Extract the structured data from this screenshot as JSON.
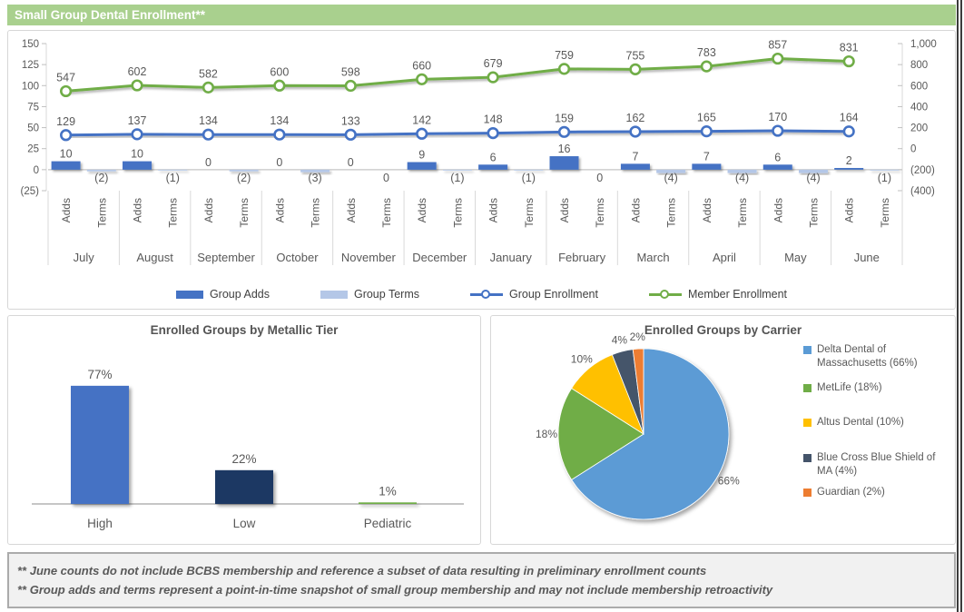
{
  "page": {
    "title": "Small Group Dental Enrollment**"
  },
  "footnotes": [
    "** June counts do not include BCBS membership and reference a subset of data resulting in preliminary enrollment counts",
    "** Group adds and terms represent a point-in-time snapshot of small group membership and may not include membership retroactivity"
  ],
  "colors": {
    "title_bar": "#A9D08E",
    "axis_text": "#595959",
    "grid_line": "#D9D9D9",
    "zero_line": "#C6C6C6"
  },
  "chart_data": [
    {
      "id": "small-group-dental-enrollment-combo",
      "type": "combo-bar-line",
      "categories": [
        "July",
        "August",
        "September",
        "October",
        "November",
        "December",
        "January",
        "February",
        "March",
        "April",
        "May",
        "June"
      ],
      "sub_categories": [
        "Adds",
        "Terms"
      ],
      "left_axis": {
        "min": -25,
        "max": 150,
        "tick_labels": [
          "150",
          "125",
          "100",
          "75",
          "50",
          "25",
          "0",
          "(25)"
        ]
      },
      "right_axis": {
        "min": -400,
        "max": 1000,
        "tick_labels": [
          "1,000",
          "800",
          "600",
          "400",
          "200",
          "0",
          "(200)",
          "(400)"
        ]
      },
      "legend_position": "bottom",
      "series": [
        {
          "name": "Group Adds",
          "kind": "bar",
          "axis": "left",
          "color": "#4472C4",
          "values": [
            10,
            10,
            0,
            0,
            0,
            9,
            6,
            16,
            7,
            7,
            6,
            2
          ],
          "labels": [
            "10",
            "10",
            "0",
            "0",
            "0",
            "9",
            "6",
            "16",
            "7",
            "7",
            "6",
            "2"
          ]
        },
        {
          "name": "Group Terms",
          "kind": "bar",
          "axis": "left",
          "color": "#B4C7E7",
          "values": [
            -2,
            -1,
            -2,
            -3,
            0,
            -1,
            -1,
            0,
            -4,
            -4,
            -4,
            -1
          ],
          "labels": [
            "(2)",
            "(1)",
            "(2)",
            "(3)",
            "0",
            "(1)",
            "(1)",
            "0",
            "(4)",
            "(4)",
            "(4)",
            "(1)"
          ]
        },
        {
          "name": "Group Enrollment",
          "kind": "line",
          "axis": "right",
          "color": "#4472C4",
          "values": [
            129,
            137,
            134,
            134,
            133,
            142,
            148,
            159,
            162,
            165,
            170,
            164
          ],
          "labels": [
            "129",
            "137",
            "134",
            "134",
            "133",
            "142",
            "148",
            "159",
            "162",
            "165",
            "170",
            "164"
          ]
        },
        {
          "name": "Member Enrollment",
          "kind": "line",
          "axis": "right",
          "color": "#70AD47",
          "values": [
            547,
            602,
            582,
            600,
            598,
            660,
            679,
            759,
            755,
            783,
            857,
            831
          ],
          "labels": [
            "547",
            "602",
            "582",
            "600",
            "598",
            "660",
            "679",
            "759",
            "755",
            "783",
            "857",
            "831"
          ]
        }
      ]
    },
    {
      "id": "enrolled-groups-by-metallic-tier",
      "type": "bar",
      "title": "Enrolled Groups by Metallic Tier",
      "categories": [
        "High",
        "Low",
        "Pediatric"
      ],
      "values": [
        77,
        22,
        1
      ],
      "labels": [
        "77%",
        "22%",
        "1%"
      ],
      "colors": [
        "#4472C4",
        "#1F3864",
        "#70AD47"
      ]
    },
    {
      "id": "enrolled-groups-by-carrier",
      "type": "pie",
      "title": "Enrolled Groups by Carrier",
      "slices": [
        {
          "name": "Delta Dental of Massachusetts (66%)",
          "value": 66,
          "label": "66%",
          "color": "#5B9BD5"
        },
        {
          "name": "MetLife (18%)",
          "value": 18,
          "label": "18%",
          "color": "#70AD47"
        },
        {
          "name": "Altus Dental (10%)",
          "value": 10,
          "label": "10%",
          "color": "#FFC000"
        },
        {
          "name": "Blue Cross Blue Shield of MA (4%)",
          "value": 4,
          "label": "4%",
          "color": "#44546A"
        },
        {
          "name": "Guardian (2%)",
          "value": 2,
          "label": "2%",
          "color": "#ED7D31"
        }
      ]
    }
  ]
}
